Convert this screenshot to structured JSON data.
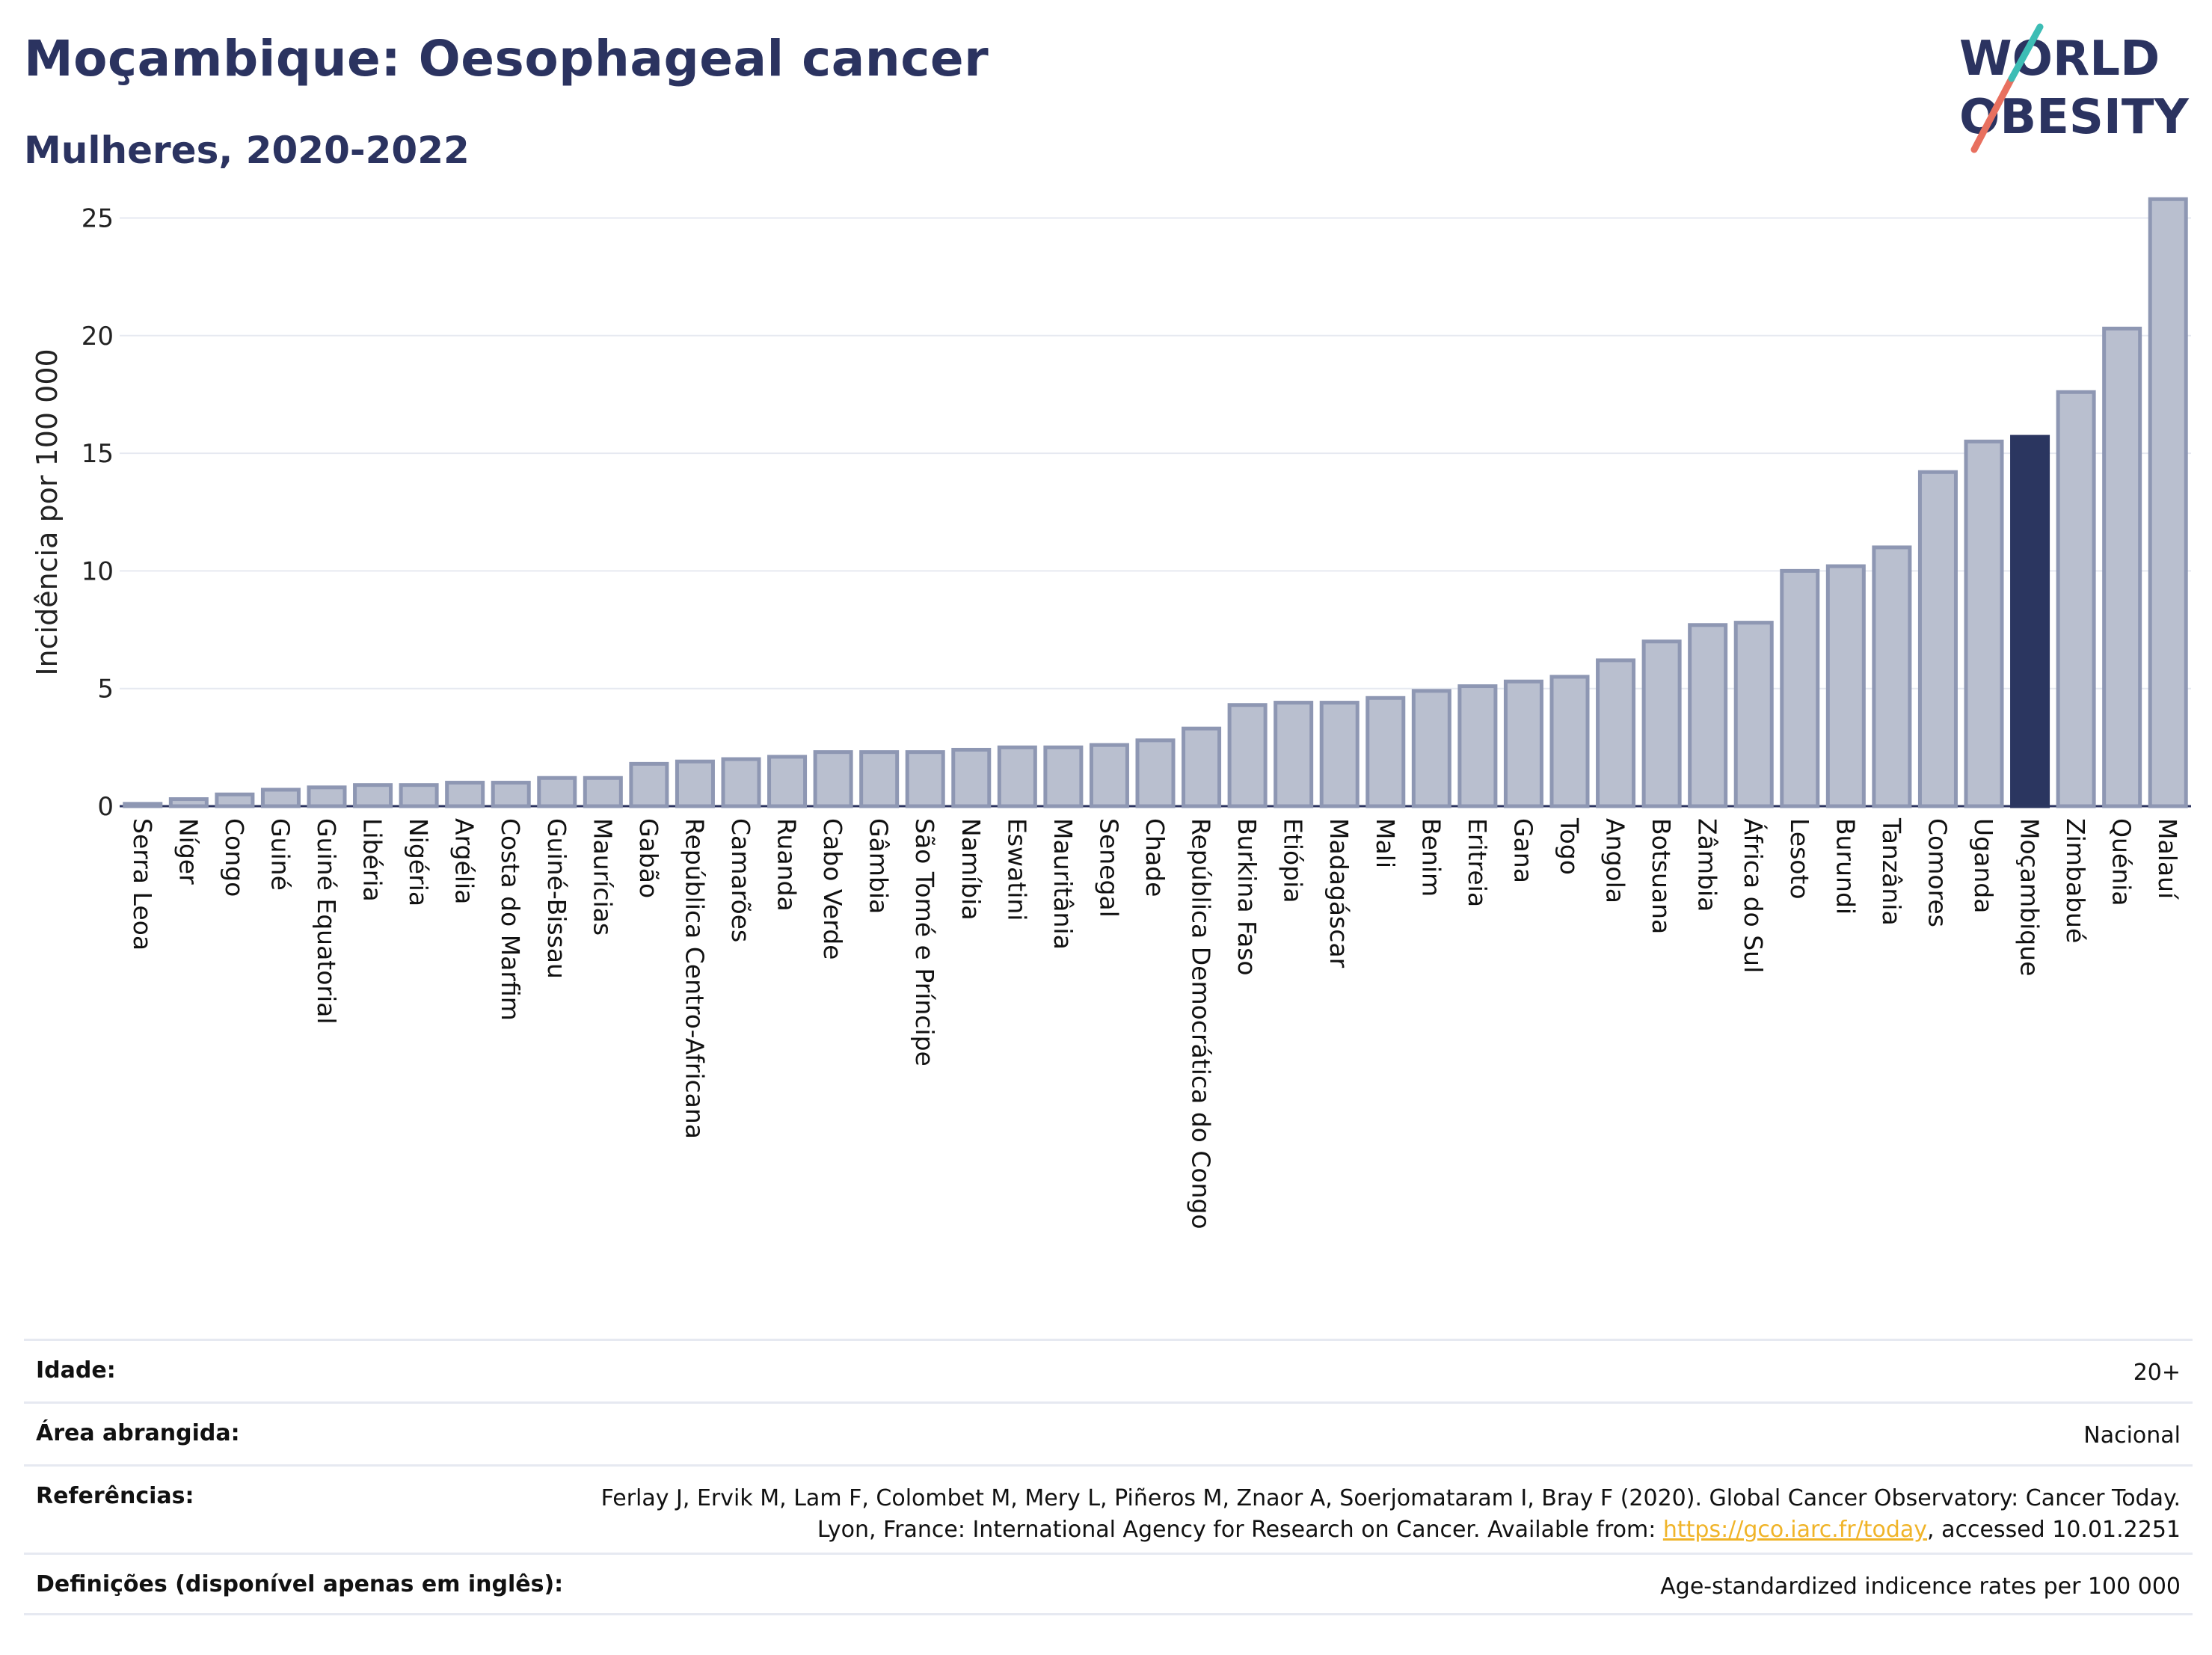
{
  "header": {
    "title": "Moçambique: Oesophageal cancer",
    "subtitle": "Mulheres, 2020-2022"
  },
  "logo": {
    "line1": "WORLD",
    "line2": "OBESITY"
  },
  "colors": {
    "bar_fill": "#b9bfcf",
    "bar_stroke": "#8e97b3",
    "highlight": "#2b3660",
    "grid": "#e6e9f1",
    "text": "#2b3360",
    "link": "#f0b429"
  },
  "chart_data": {
    "type": "bar",
    "title": "Moçambique: Oesophageal cancer",
    "subtitle": "Mulheres, 2020-2022",
    "xlabel": "",
    "ylabel": "Incidência por 100 000",
    "ylim": [
      0,
      26
    ],
    "yticks": [
      0,
      5,
      10,
      15,
      20,
      25
    ],
    "grid": true,
    "highlight": "Moçambique",
    "categories": [
      "Serra Leoa",
      "Níger",
      "Congo",
      "Guiné",
      "Guiné Equatorial",
      "Libéria",
      "Nigéria",
      "Argélia",
      "Costa do Marfim",
      "Guiné-Bissau",
      "Maurícias",
      "Gabão",
      "República Centro-Africana",
      "Camarões",
      "Ruanda",
      "Cabo Verde",
      "Gâmbia",
      "São Tomé e Príncipe",
      "Namíbia",
      "Eswatini",
      "Mauritânia",
      "Senegal",
      "Chade",
      "República Democrática do Congo",
      "Burkina Faso",
      "Etiópia",
      "Madagáscar",
      "Mali",
      "Benim",
      "Eritreia",
      "Gana",
      "Togo",
      "Angola",
      "Botsuana",
      "Zâmbia",
      "África do Sul",
      "Lesoto",
      "Burundi",
      "Tanzânia",
      "Comores",
      "Uganda",
      "Moçambique",
      "Zimbabué",
      "Quénia",
      "Malauí"
    ],
    "values": [
      0.1,
      0.3,
      0.5,
      0.7,
      0.8,
      0.9,
      0.9,
      1.0,
      1.0,
      1.2,
      1.2,
      1.8,
      1.9,
      2.0,
      2.1,
      2.3,
      2.3,
      2.3,
      2.4,
      2.5,
      2.5,
      2.6,
      2.8,
      3.3,
      4.3,
      4.4,
      4.4,
      4.6,
      4.9,
      5.1,
      5.3,
      5.5,
      6.2,
      7.0,
      7.7,
      7.8,
      10.0,
      10.2,
      11.0,
      14.2,
      15.5,
      15.7,
      17.6,
      20.3,
      25.8
    ]
  },
  "meta": {
    "rows": [
      {
        "label": "Idade:",
        "value": "20+"
      },
      {
        "label": "Área abrangida:",
        "value": "Nacional"
      },
      {
        "label": "Referências:",
        "value": "Ferlay J, Ervik M, Lam F, Colombet M, Mery L, Piñeros M, Znaor A, Soerjomataram I, Bray F (2020). Global Cancer Observatory: Cancer Today. Lyon, France: International Agency for Research on Cancer. Available from: ",
        "link": "https://gco.iarc.fr/today",
        "suffix": ", accessed 10.01.2251"
      },
      {
        "label": "Definições (disponível apenas em inglês):",
        "value": "Age-standardized indicence rates per 100 000"
      }
    ]
  }
}
